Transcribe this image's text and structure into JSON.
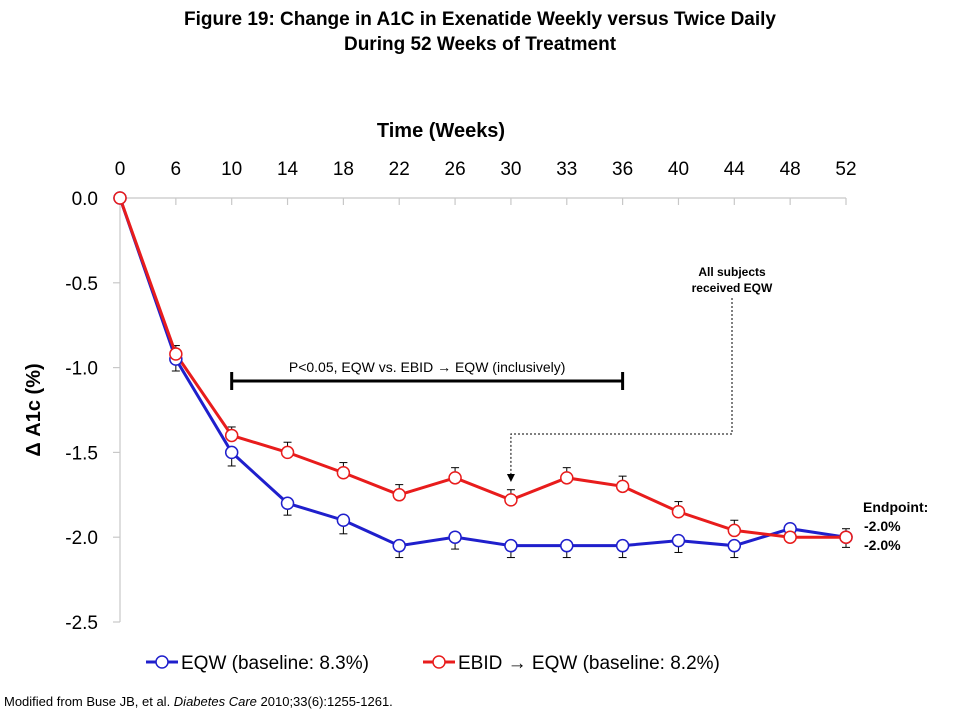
{
  "figure": {
    "title_line1": "Figure 19: Change in A1C in Exenatide Weekly versus Twice Daily",
    "title_line2": "During 52 Weeks of Treatment"
  },
  "chart_data": {
    "type": "line",
    "xlabel": "Time (Weeks)",
    "ylabel": "Δ A1c (%)",
    "categories": [
      "0",
      "6",
      "10",
      "14",
      "18",
      "22",
      "26",
      "30",
      "33",
      "36",
      "40",
      "44",
      "48",
      "52"
    ],
    "ylim": [
      -2.5,
      0.0
    ],
    "yticks": [
      "0.0",
      "-0.5",
      "-1.0",
      "-1.5",
      "-2.0",
      "-2.5"
    ],
    "series": [
      {
        "name": "EQW (baseline: 8.3%)",
        "color": "#1f1fcc",
        "values": [
          0.0,
          -0.95,
          -1.5,
          -1.8,
          -1.9,
          -2.05,
          -2.0,
          -2.05,
          -2.05,
          -2.05,
          -2.02,
          -2.05,
          -1.95,
          -2.0
        ],
        "error": [
          0,
          0.07,
          0.08,
          0.07,
          0.08,
          0.07,
          0.07,
          0.07,
          0.07,
          0.07,
          0.07,
          0.07,
          0.06,
          0.06
        ]
      },
      {
        "name": "EBID → EQW (baseline: 8.2%)",
        "color": "#e81c1c",
        "values": [
          0.0,
          -0.92,
          -1.4,
          -1.5,
          -1.62,
          -1.75,
          -1.65,
          -1.78,
          -1.65,
          -1.7,
          -1.85,
          -1.96,
          -2.0,
          -2.0
        ],
        "error": [
          0,
          0.05,
          0.05,
          0.06,
          0.06,
          0.06,
          0.06,
          0.06,
          0.06,
          0.06,
          0.06,
          0.06,
          0.05,
          0.05
        ]
      }
    ],
    "annotations": {
      "significance": "P<0.05, EQW vs. EBID → EQW (inclusively)",
      "switch_line1": "All subjects",
      "switch_line2": "received EQW",
      "endpoint_label": "Endpoint:",
      "endpoint_eqw": "-2.0%",
      "endpoint_ebid": "-2.0%"
    },
    "legend_position": "bottom"
  },
  "footer": {
    "prefix": "Modified from Buse JB, et al. ",
    "journal": "Diabetes Care",
    "suffix": " 2010;33(6):1255-1261."
  }
}
